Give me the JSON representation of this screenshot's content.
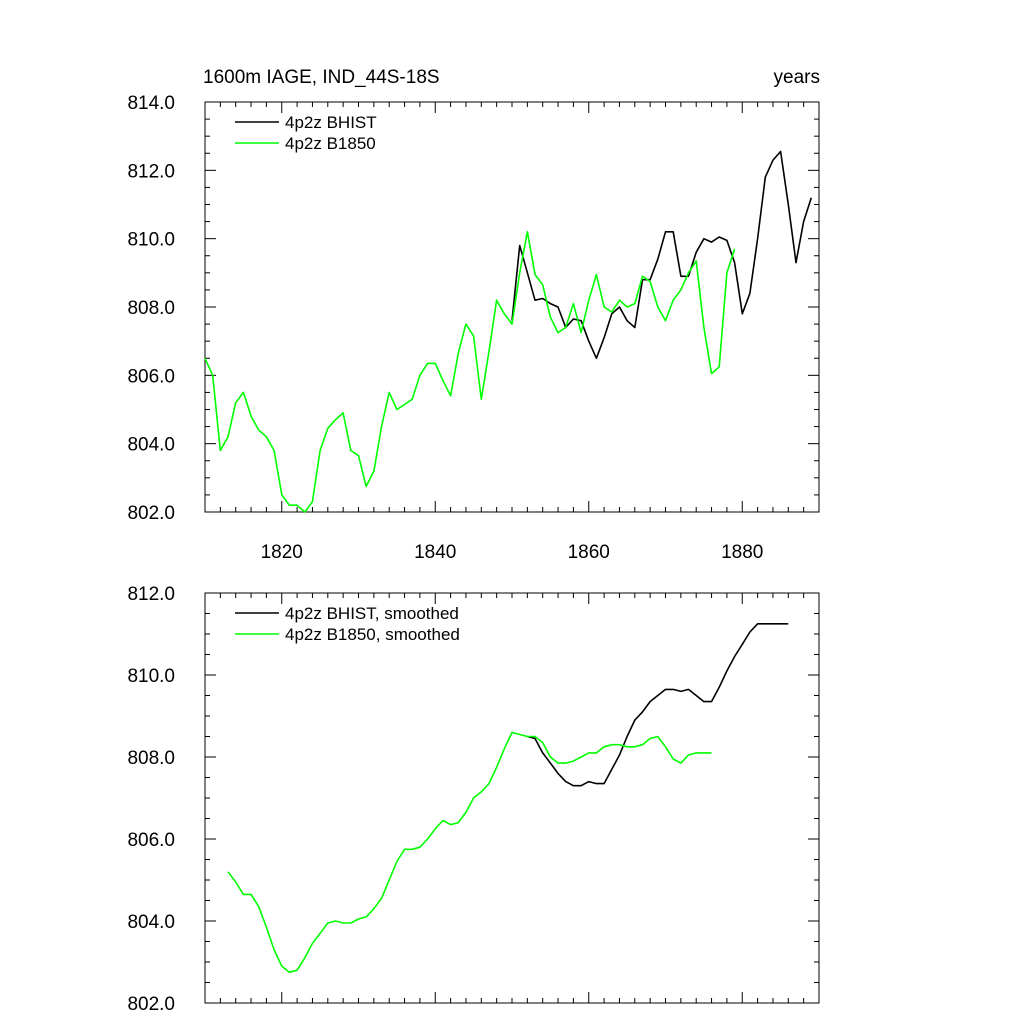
{
  "chart_data": [
    {
      "type": "line",
      "title_left": "1600m IAGE, IND_44S-18S",
      "title_right": "years",
      "xlim": [
        1810,
        1890
      ],
      "ylim": [
        802.0,
        814.0
      ],
      "x_ticks": [
        1820,
        1840,
        1860,
        1880
      ],
      "x_tick_labels": [
        "1820",
        "1840",
        "1860",
        "1880"
      ],
      "y_ticks": [
        802.0,
        804.0,
        806.0,
        808.0,
        810.0,
        812.0,
        814.0
      ],
      "y_tick_labels": [
        "802.0",
        "804.0",
        "806.0",
        "808.0",
        "810.0",
        "812.0",
        "814.0"
      ],
      "legend_position": "top-left",
      "series": [
        {
          "name": "4p2z BHIST",
          "color": "#000000",
          "x": [
            1850,
            1851,
            1852,
            1853,
            1854,
            1855,
            1856,
            1857,
            1858,
            1859,
            1860,
            1861,
            1862,
            1863,
            1864,
            1865,
            1866,
            1867,
            1868,
            1869,
            1870,
            1871,
            1872,
            1873,
            1874,
            1875,
            1876,
            1877,
            1878,
            1879,
            1880,
            1881,
            1882,
            1883,
            1884,
            1885,
            1886,
            1887,
            1888,
            1889
          ],
          "y": [
            807.6,
            809.8,
            809.0,
            808.2,
            808.25,
            808.1,
            808.0,
            807.4,
            807.65,
            807.6,
            807.0,
            806.5,
            807.1,
            807.8,
            808.0,
            807.6,
            807.4,
            808.8,
            808.8,
            809.4,
            810.2,
            810.2,
            808.9,
            808.9,
            809.6,
            810.0,
            809.9,
            810.05,
            809.95,
            809.3,
            807.8,
            808.4,
            810.0,
            811.8,
            812.3,
            812.55,
            811.0,
            809.3,
            810.5,
            811.2
          ]
        },
        {
          "name": "4p2z B1850",
          "color": "#00ff00",
          "x": [
            1810,
            1811,
            1812,
            1813,
            1814,
            1815,
            1816,
            1817,
            1818,
            1819,
            1820,
            1821,
            1822,
            1823,
            1824,
            1825,
            1826,
            1827,
            1828,
            1829,
            1830,
            1831,
            1832,
            1833,
            1834,
            1835,
            1836,
            1837,
            1838,
            1839,
            1840,
            1841,
            1842,
            1843,
            1844,
            1845,
            1846,
            1847,
            1848,
            1849,
            1850,
            1851,
            1852,
            1853,
            1854,
            1855,
            1856,
            1857,
            1858,
            1859,
            1860,
            1861,
            1862,
            1863,
            1864,
            1865,
            1866,
            1867,
            1868,
            1869,
            1870,
            1871,
            1872,
            1873,
            1874,
            1875,
            1876,
            1877,
            1878,
            1879
          ],
          "y": [
            806.5,
            806.0,
            803.8,
            804.2,
            805.2,
            805.5,
            804.8,
            804.4,
            804.2,
            803.8,
            802.5,
            802.2,
            802.2,
            802.0,
            802.3,
            803.8,
            804.45,
            804.7,
            804.9,
            803.8,
            803.65,
            802.75,
            803.2,
            804.5,
            805.5,
            805.0,
            805.15,
            805.3,
            806.0,
            806.35,
            806.35,
            805.85,
            805.4,
            806.65,
            807.5,
            807.15,
            805.3,
            806.7,
            808.2,
            807.8,
            807.5,
            809.0,
            810.2,
            808.95,
            808.65,
            807.7,
            807.25,
            807.4,
            808.1,
            807.25,
            808.2,
            808.95,
            808.0,
            807.85,
            808.2,
            808.0,
            808.1,
            808.9,
            808.75,
            808.0,
            807.6,
            808.2,
            808.5,
            809.0,
            809.35,
            807.4,
            806.05,
            806.25,
            809.0,
            809.7
          ]
        }
      ]
    },
    {
      "type": "line",
      "xlim": [
        1810,
        1890
      ],
      "ylim": [
        802.0,
        812.0
      ],
      "x_ticks": [
        1820,
        1840,
        1860,
        1880
      ],
      "y_ticks": [
        802.0,
        804.0,
        806.0,
        808.0,
        810.0,
        812.0
      ],
      "y_tick_labels": [
        "802.0",
        "804.0",
        "806.0",
        "808.0",
        "810.0",
        "812.0"
      ],
      "legend_position": "top-left",
      "series": [
        {
          "name": "4p2z BHIST, smoothed",
          "color": "#000000",
          "x": [
            1852,
            1853,
            1854,
            1855,
            1856,
            1857,
            1858,
            1859,
            1860,
            1861,
            1862,
            1863,
            1864,
            1865,
            1866,
            1867,
            1868,
            1869,
            1870,
            1871,
            1872,
            1873,
            1874,
            1875,
            1876,
            1877,
            1878,
            1879,
            1880,
            1881,
            1882,
            1883,
            1884,
            1885,
            1886
          ],
          "y": [
            808.5,
            808.45,
            808.1,
            807.85,
            807.6,
            807.4,
            807.3,
            807.3,
            807.4,
            807.35,
            807.35,
            807.7,
            808.05,
            808.5,
            808.9,
            809.1,
            809.35,
            809.5,
            809.65,
            809.65,
            809.6,
            809.65,
            809.5,
            809.35,
            809.35,
            809.7,
            810.1,
            810.45,
            810.75,
            811.05,
            811.25,
            811.25,
            811.25,
            811.25,
            811.25
          ]
        },
        {
          "name": "4p2z B1850, smoothed",
          "color": "#00ff00",
          "x": [
            1813,
            1814,
            1815,
            1816,
            1817,
            1818,
            1819,
            1820,
            1821,
            1822,
            1823,
            1824,
            1825,
            1826,
            1827,
            1828,
            1829,
            1830,
            1831,
            1832,
            1833,
            1834,
            1835,
            1836,
            1837,
            1838,
            1839,
            1840,
            1841,
            1842,
            1843,
            1844,
            1845,
            1846,
            1847,
            1848,
            1849,
            1850,
            1851,
            1852,
            1853,
            1854,
            1855,
            1856,
            1857,
            1858,
            1859,
            1860,
            1861,
            1862,
            1863,
            1864,
            1865,
            1866,
            1867,
            1868,
            1869,
            1870,
            1871,
            1872,
            1873,
            1874,
            1875,
            1876
          ],
          "y": [
            805.2,
            804.95,
            804.65,
            804.65,
            804.35,
            803.85,
            803.3,
            802.9,
            802.75,
            802.8,
            803.1,
            803.45,
            803.7,
            803.95,
            804.0,
            803.95,
            803.95,
            804.05,
            804.1,
            804.3,
            804.55,
            805.0,
            805.45,
            805.75,
            805.75,
            805.8,
            806.0,
            806.25,
            806.45,
            806.35,
            806.4,
            806.65,
            807.0,
            807.15,
            807.35,
            807.75,
            808.2,
            808.6,
            808.55,
            808.5,
            808.5,
            808.35,
            808.0,
            807.85,
            807.85,
            807.9,
            808.0,
            808.1,
            808.1,
            808.25,
            808.3,
            808.3,
            808.25,
            808.25,
            808.3,
            808.45,
            808.5,
            808.25,
            807.95,
            807.85,
            808.05,
            808.1,
            808.1,
            808.1
          ]
        }
      ]
    }
  ]
}
